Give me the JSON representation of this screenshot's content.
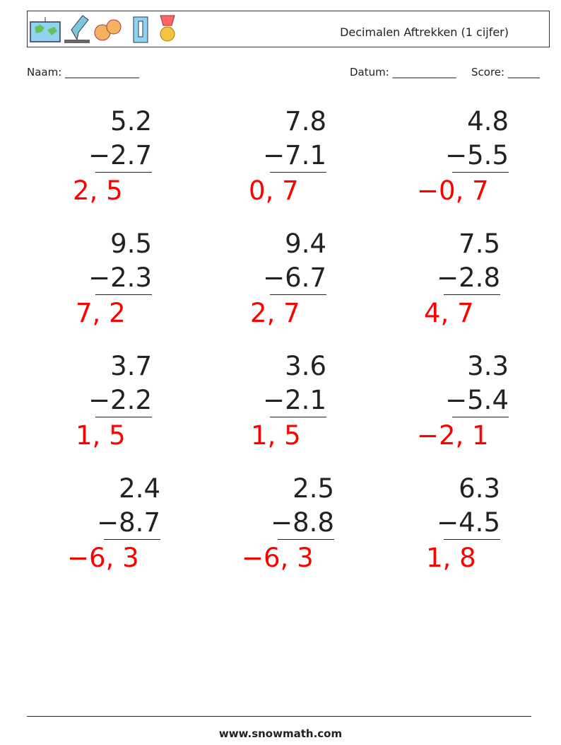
{
  "header": {
    "title": "Decimalen Aftrekken (1 cijfer)"
  },
  "fields": {
    "name": "Naam: ______________",
    "date": "Datum: ____________",
    "score": "Score: ______"
  },
  "problems": [
    {
      "top": "5.2",
      "bottom": "−2.7",
      "answer": "2, 5"
    },
    {
      "top": "7.8",
      "bottom": "−7.1",
      "answer": "0, 7"
    },
    {
      "top": "4.8",
      "bottom": "−5.5",
      "answer": "−0, 7"
    },
    {
      "top": "9.5",
      "bottom": "−2.3",
      "answer": "7, 2"
    },
    {
      "top": "9.4",
      "bottom": "−6.7",
      "answer": "2, 7"
    },
    {
      "top": "7.5",
      "bottom": "−2.8",
      "answer": "4, 7"
    },
    {
      "top": "3.7",
      "bottom": "−2.2",
      "answer": "1, 5"
    },
    {
      "top": "3.6",
      "bottom": "−2.1",
      "answer": "1, 5"
    },
    {
      "top": "3.3",
      "bottom": "−5.4",
      "answer": "−2, 1"
    },
    {
      "top": "2.4",
      "bottom": "−8.7",
      "answer": "−6, 3"
    },
    {
      "top": "2.5",
      "bottom": "−8.8",
      "answer": "−6, 3"
    },
    {
      "top": "6.3",
      "bottom": "−4.5",
      "answer": "1, 8"
    }
  ],
  "footer": "www.snowmath.com"
}
